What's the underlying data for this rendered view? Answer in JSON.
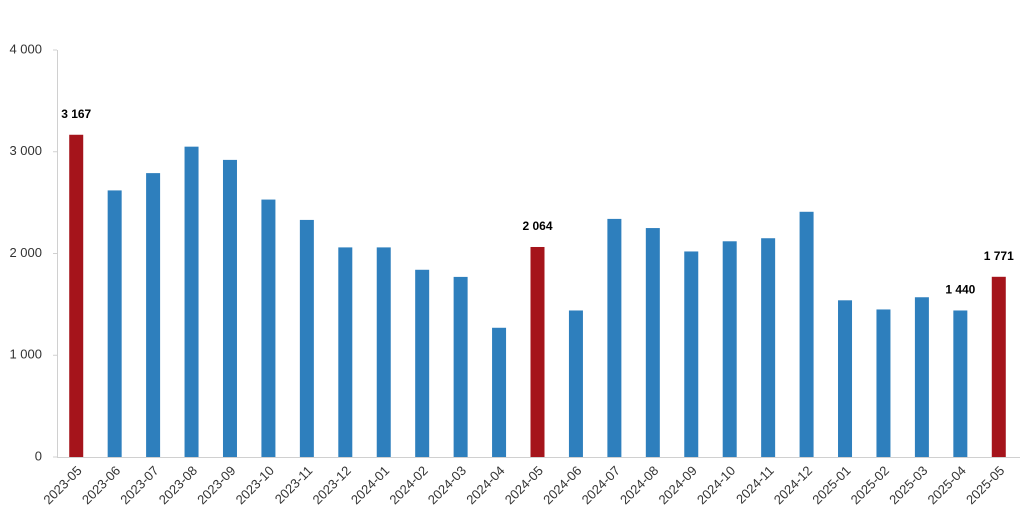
{
  "chart_data": {
    "type": "bar",
    "categories": [
      "2023-05",
      "2023-06",
      "2023-07",
      "2023-08",
      "2023-09",
      "2023-10",
      "2023-11",
      "2023-12",
      "2024-01",
      "2024-02",
      "2024-03",
      "2024-04",
      "2024-05",
      "2024-06",
      "2024-07",
      "2024-08",
      "2024-09",
      "2024-10",
      "2024-11",
      "2024-12",
      "2025-01",
      "2025-02",
      "2025-03",
      "2025-04",
      "2025-05"
    ],
    "values": [
      3167,
      2620,
      2790,
      3050,
      2920,
      2530,
      2330,
      2060,
      2060,
      1840,
      1770,
      1270,
      2064,
      1440,
      2340,
      2250,
      2020,
      2120,
      2150,
      2410,
      1540,
      1450,
      1570,
      1440,
      1771
    ],
    "value_labels": [
      "3 167",
      null,
      null,
      null,
      null,
      null,
      null,
      null,
      null,
      null,
      null,
      null,
      "2 064",
      null,
      null,
      null,
      null,
      null,
      null,
      null,
      null,
      null,
      null,
      "1 440",
      "1 771"
    ],
    "colors": [
      "#a5141b",
      "#2e7fbd",
      "#2e7fbd",
      "#2e7fbd",
      "#2e7fbd",
      "#2e7fbd",
      "#2e7fbd",
      "#2e7fbd",
      "#2e7fbd",
      "#2e7fbd",
      "#2e7fbd",
      "#2e7fbd",
      "#a5141b",
      "#2e7fbd",
      "#2e7fbd",
      "#2e7fbd",
      "#2e7fbd",
      "#2e7fbd",
      "#2e7fbd",
      "#2e7fbd",
      "#2e7fbd",
      "#2e7fbd",
      "#2e7fbd",
      "#2e7fbd",
      "#a5141b"
    ],
    "ylim": [
      0,
      4000
    ],
    "yticks": [
      0,
      {
        "value": 1000,
        "label": "1 000"
      },
      {
        "value": 2000,
        "label": "2 000"
      },
      {
        "value": 3000,
        "label": "3 000"
      },
      {
        "value": 4000,
        "label": "4 000"
      }
    ],
    "grid": false
  }
}
